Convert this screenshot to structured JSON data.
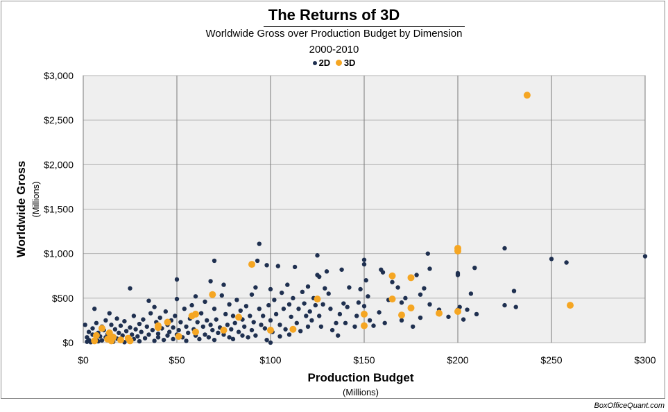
{
  "chart_data": {
    "type": "scatter",
    "title": "The Returns of 3D",
    "subtitle": "Worldwide Gross over Production Budget by Dimension",
    "date_range": "2000-2010",
    "xlabel": "Production Budget",
    "xlabel_units": "(Millions)",
    "ylabel": "Worldwide Gross",
    "ylabel_units": "(Millions)",
    "xlim": [
      0,
      300
    ],
    "ylim": [
      0,
      3000
    ],
    "x_ticks": [
      "$0",
      "$50",
      "$100",
      "$150",
      "$200",
      "$250",
      "$300"
    ],
    "y_ticks": [
      "$0",
      "$500",
      "$1,000",
      "$1,500",
      "$2,000",
      "$2,500",
      "$3,000"
    ],
    "x_tick_values": [
      0,
      50,
      100,
      150,
      200,
      250,
      300
    ],
    "y_tick_values": [
      0,
      500,
      1000,
      1500,
      2000,
      2500,
      3000
    ],
    "grid": true,
    "legend_position": "top-center",
    "series": [
      {
        "name": "2D",
        "color": "#1f3050",
        "points": [
          [
            1,
            200
          ],
          [
            2,
            10
          ],
          [
            2,
            60
          ],
          [
            3,
            30
          ],
          [
            3,
            120
          ],
          [
            4,
            5
          ],
          [
            5,
            90
          ],
          [
            5,
            160
          ],
          [
            6,
            380
          ],
          [
            7,
            40
          ],
          [
            7,
            220
          ],
          [
            8,
            15
          ],
          [
            8,
            110
          ],
          [
            9,
            70
          ],
          [
            10,
            180
          ],
          [
            10,
            25
          ],
          [
            11,
            140
          ],
          [
            12,
            60
          ],
          [
            12,
            250
          ],
          [
            13,
            95
          ],
          [
            14,
            30
          ],
          [
            14,
            330
          ],
          [
            15,
            200
          ],
          [
            16,
            75
          ],
          [
            16,
            10
          ],
          [
            17,
            150
          ],
          [
            18,
            45
          ],
          [
            18,
            270
          ],
          [
            19,
            110
          ],
          [
            20,
            30
          ],
          [
            20,
            190
          ],
          [
            21,
            80
          ],
          [
            22,
            240
          ],
          [
            22,
            5
          ],
          [
            23,
            130
          ],
          [
            24,
            60
          ],
          [
            25,
            610
          ],
          [
            25,
            170
          ],
          [
            26,
            90
          ],
          [
            27,
            40
          ],
          [
            27,
            300
          ],
          [
            28,
            150
          ],
          [
            29,
            70
          ],
          [
            30,
            210
          ],
          [
            30,
            15
          ],
          [
            31,
            120
          ],
          [
            32,
            260
          ],
          [
            33,
            50
          ],
          [
            34,
            180
          ],
          [
            35,
            90
          ],
          [
            35,
            470
          ],
          [
            36,
            330
          ],
          [
            37,
            140
          ],
          [
            38,
            20
          ],
          [
            38,
            400
          ],
          [
            39,
            230
          ],
          [
            40,
            100
          ],
          [
            40,
            60
          ],
          [
            41,
            280
          ],
          [
            42,
            160
          ],
          [
            43,
            30
          ],
          [
            44,
            350
          ],
          [
            45,
            200
          ],
          [
            45,
            80
          ],
          [
            46,
            120
          ],
          [
            47,
            250
          ],
          [
            48,
            40
          ],
          [
            48,
            170
          ],
          [
            49,
            300
          ],
          [
            50,
            90
          ],
          [
            50,
            710
          ],
          [
            50,
            490
          ],
          [
            51,
            140
          ],
          [
            52,
            230
          ],
          [
            53,
            60
          ],
          [
            54,
            380
          ],
          [
            55,
            180
          ],
          [
            55,
            20
          ],
          [
            56,
            110
          ],
          [
            57,
            270
          ],
          [
            58,
            420
          ],
          [
            59,
            150
          ],
          [
            60,
            80
          ],
          [
            60,
            520
          ],
          [
            61,
            230
          ],
          [
            62,
            40
          ],
          [
            63,
            330
          ],
          [
            64,
            180
          ],
          [
            65,
            90
          ],
          [
            65,
            460
          ],
          [
            66,
            250
          ],
          [
            67,
            60
          ],
          [
            68,
            690
          ],
          [
            68,
            200
          ],
          [
            69,
            140
          ],
          [
            70,
            30
          ],
          [
            70,
            920
          ],
          [
            70,
            380
          ],
          [
            71,
            260
          ],
          [
            72,
            110
          ],
          [
            73,
            170
          ],
          [
            74,
            530
          ],
          [
            75,
            90
          ],
          [
            75,
            650
          ],
          [
            76,
            320
          ],
          [
            77,
            200
          ],
          [
            78,
            60
          ],
          [
            78,
            430
          ],
          [
            79,
            150
          ],
          [
            80,
            300
          ],
          [
            80,
            40
          ],
          [
            81,
            220
          ],
          [
            82,
            480
          ],
          [
            83,
            120
          ],
          [
            84,
            360
          ],
          [
            85,
            80
          ],
          [
            85,
            260
          ],
          [
            86,
            180
          ],
          [
            87,
            410
          ],
          [
            88,
            60
          ],
          [
            89,
            300
          ],
          [
            90,
            140
          ],
          [
            90,
            540
          ],
          [
            91,
            230
          ],
          [
            92,
            620
          ],
          [
            92,
            80
          ],
          [
            93,
            920
          ],
          [
            94,
            1110
          ],
          [
            94,
            380
          ],
          [
            95,
            200
          ],
          [
            96,
            300
          ],
          [
            97,
            160
          ],
          [
            98,
            30
          ],
          [
            98,
            870
          ],
          [
            99,
            420
          ],
          [
            100,
            600
          ],
          [
            100,
            250
          ],
          [
            100,
            0
          ],
          [
            101,
            120
          ],
          [
            102,
            480
          ],
          [
            103,
            320
          ],
          [
            104,
            860
          ],
          [
            105,
            70
          ],
          [
            105,
            200
          ],
          [
            106,
            560
          ],
          [
            107,
            380
          ],
          [
            108,
            150
          ],
          [
            109,
            650
          ],
          [
            110,
            430
          ],
          [
            110,
            90
          ],
          [
            111,
            290
          ],
          [
            112,
            500
          ],
          [
            113,
            850
          ],
          [
            114,
            220
          ],
          [
            115,
            380
          ],
          [
            116,
            130
          ],
          [
            117,
            570
          ],
          [
            118,
            440
          ],
          [
            119,
            300
          ],
          [
            120,
            630
          ],
          [
            120,
            180
          ],
          [
            121,
            350
          ],
          [
            122,
            250
          ],
          [
            123,
            500
          ],
          [
            124,
            420
          ],
          [
            125,
            980
          ],
          [
            125,
            760
          ],
          [
            126,
            300
          ],
          [
            126,
            740
          ],
          [
            127,
            180
          ],
          [
            128,
            430
          ],
          [
            129,
            610
          ],
          [
            130,
            800
          ],
          [
            131,
            550
          ],
          [
            132,
            380
          ],
          [
            133,
            140
          ],
          [
            135,
            220
          ],
          [
            136,
            80
          ],
          [
            137,
            320
          ],
          [
            138,
            820
          ],
          [
            139,
            440
          ],
          [
            140,
            220
          ],
          [
            141,
            400
          ],
          [
            142,
            620
          ],
          [
            145,
            180
          ],
          [
            146,
            300
          ],
          [
            147,
            450
          ],
          [
            148,
            600
          ],
          [
            150,
            930
          ],
          [
            150,
            880
          ],
          [
            150,
            410
          ],
          [
            151,
            700
          ],
          [
            152,
            520
          ],
          [
            153,
            250
          ],
          [
            155,
            190
          ],
          [
            158,
            340
          ],
          [
            159,
            820
          ],
          [
            160,
            790
          ],
          [
            161,
            220
          ],
          [
            163,
            480
          ],
          [
            165,
            680
          ],
          [
            168,
            620
          ],
          [
            170,
            250
          ],
          [
            170,
            450
          ],
          [
            172,
            500
          ],
          [
            175,
            380
          ],
          [
            176,
            180
          ],
          [
            178,
            760
          ],
          [
            180,
            280
          ],
          [
            180,
            540
          ],
          [
            182,
            610
          ],
          [
            184,
            1000
          ],
          [
            185,
            430
          ],
          [
            185,
            830
          ],
          [
            190,
            370
          ],
          [
            195,
            290
          ],
          [
            200,
            780
          ],
          [
            200,
            760
          ],
          [
            200,
            370
          ],
          [
            201,
            400
          ],
          [
            203,
            260
          ],
          [
            205,
            370
          ],
          [
            207,
            550
          ],
          [
            209,
            840
          ],
          [
            210,
            320
          ],
          [
            225,
            1060
          ],
          [
            225,
            420
          ],
          [
            230,
            580
          ],
          [
            231,
            400
          ],
          [
            250,
            940
          ],
          [
            258,
            900
          ],
          [
            300,
            970
          ]
        ]
      },
      {
        "name": "3D",
        "color": "#f5a623",
        "points": [
          [
            6,
            20
          ],
          [
            7,
            80
          ],
          [
            10,
            160
          ],
          [
            13,
            40
          ],
          [
            14,
            110
          ],
          [
            15,
            20
          ],
          [
            16,
            60
          ],
          [
            20,
            30
          ],
          [
            24,
            50
          ],
          [
            25,
            20
          ],
          [
            40,
            170
          ],
          [
            40,
            190
          ],
          [
            45,
            230
          ],
          [
            51,
            70
          ],
          [
            58,
            300
          ],
          [
            60,
            320
          ],
          [
            60,
            120
          ],
          [
            69,
            540
          ],
          [
            75,
            140
          ],
          [
            83,
            285
          ],
          [
            90,
            880
          ],
          [
            100,
            140
          ],
          [
            112,
            150
          ],
          [
            125,
            490
          ],
          [
            150,
            320
          ],
          [
            150,
            190
          ],
          [
            165,
            750
          ],
          [
            165,
            490
          ],
          [
            170,
            310
          ],
          [
            175,
            390
          ],
          [
            175,
            730
          ],
          [
            190,
            330
          ],
          [
            200,
            1060
          ],
          [
            200,
            1030
          ],
          [
            200,
            350
          ],
          [
            237,
            2780
          ],
          [
            260,
            420
          ]
        ]
      }
    ]
  },
  "credit": "BoxOfficeQuant.com"
}
